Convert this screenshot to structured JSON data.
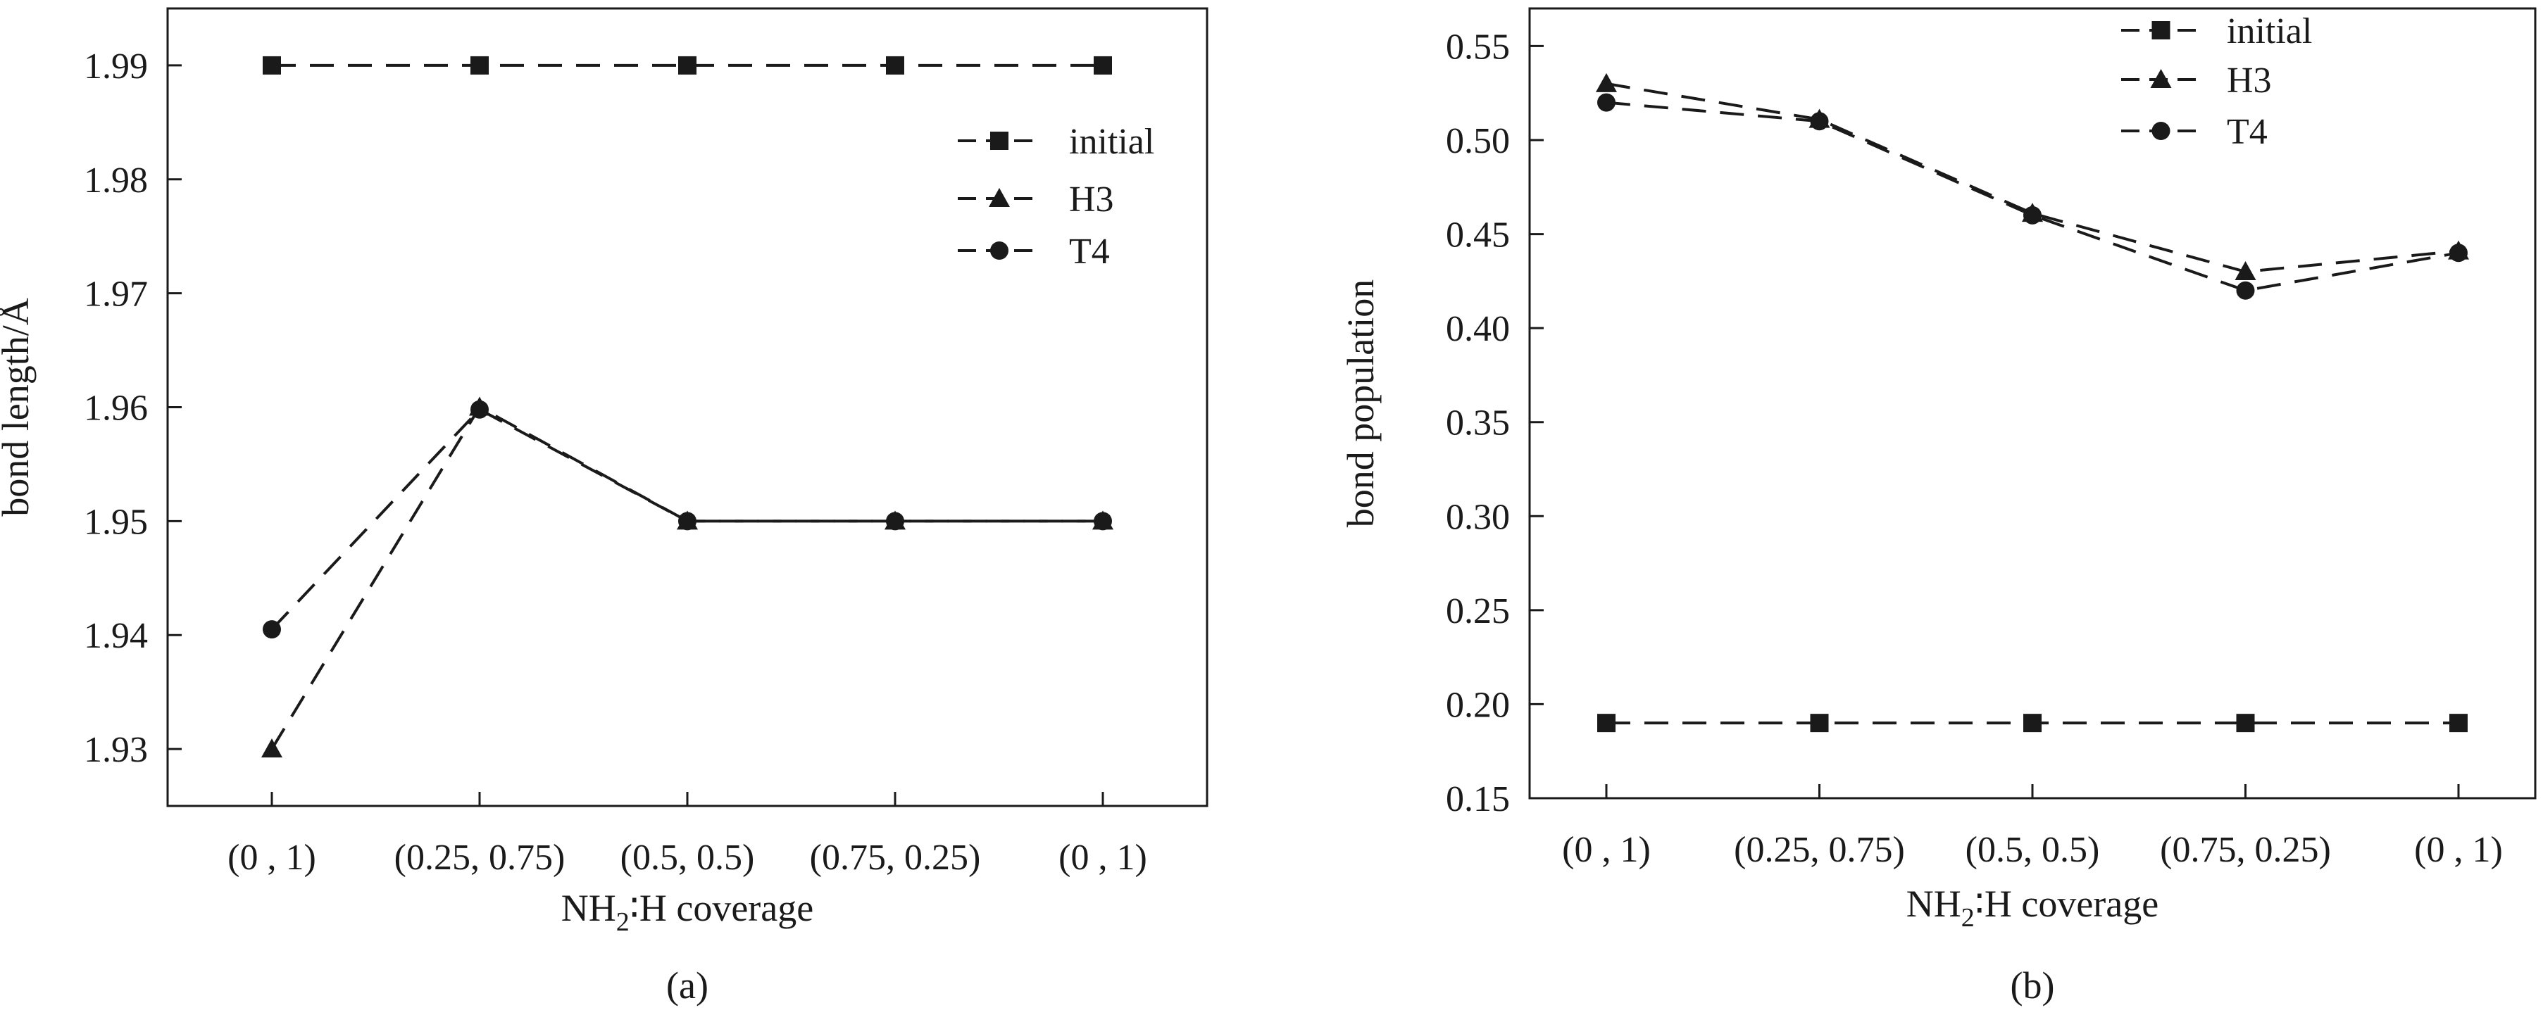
{
  "chart_data": [
    {
      "type": "line",
      "panel_label": "(a)",
      "ylabel": "bond length/Å",
      "xlabel_parts": [
        "NH",
        "2",
        "∶H coverage"
      ],
      "categories": [
        "(0 , 1)",
        "(0.25, 0.75)",
        "(0.5, 0.5)",
        "(0.75, 0.25)",
        "(0 , 1)"
      ],
      "ylim": [
        1.925,
        1.995
      ],
      "yticks": [
        1.93,
        1.94,
        1.95,
        1.96,
        1.97,
        1.98,
        1.99
      ],
      "ytick_labels": [
        "1.93",
        "1.94",
        "1.95",
        "1.96",
        "1.97",
        "1.98",
        "1.99"
      ],
      "legend_position": "top-right",
      "grid": false,
      "series": [
        {
          "name": "initial",
          "marker": "square",
          "values": [
            1.99,
            1.99,
            1.99,
            1.99,
            1.99
          ]
        },
        {
          "name": "H3",
          "marker": "triangle",
          "values": [
            1.93,
            1.96,
            1.95,
            1.95,
            1.95
          ]
        },
        {
          "name": "T4",
          "marker": "circle",
          "values": [
            1.9405,
            1.9598,
            1.95,
            1.95,
            1.95
          ]
        }
      ]
    },
    {
      "type": "line",
      "panel_label": "(b)",
      "ylabel": "bond population",
      "xlabel_parts": [
        "NH",
        "2",
        "∶H coverage"
      ],
      "categories": [
        "(0 , 1)",
        "(0.25, 0.75)",
        "(0.5, 0.5)",
        "(0.75, 0.25)",
        "(0 , 1)"
      ],
      "ylim": [
        0.15,
        0.57
      ],
      "yticks": [
        0.15,
        0.2,
        0.25,
        0.3,
        0.35,
        0.4,
        0.45,
        0.5,
        0.55
      ],
      "ytick_labels": [
        "0.15",
        "0.20",
        "0.25",
        "0.30",
        "0.35",
        "0.40",
        "0.45",
        "0.50",
        "0.55"
      ],
      "legend_position": "top-right",
      "grid": false,
      "series": [
        {
          "name": "initial",
          "marker": "square",
          "values": [
            0.19,
            0.19,
            0.19,
            0.19,
            0.19
          ]
        },
        {
          "name": "H3",
          "marker": "triangle",
          "values": [
            0.53,
            0.511,
            0.461,
            0.43,
            0.441
          ]
        },
        {
          "name": "T4",
          "marker": "circle",
          "values": [
            0.52,
            0.51,
            0.46,
            0.42,
            0.44
          ]
        }
      ]
    }
  ]
}
